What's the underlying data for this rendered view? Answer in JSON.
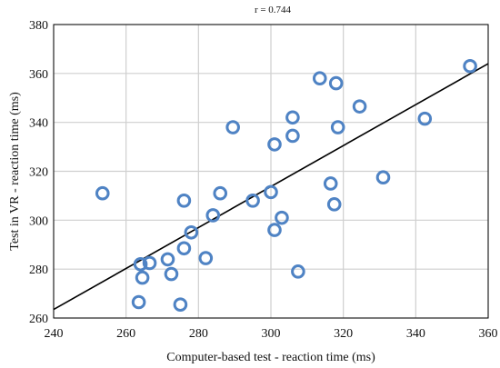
{
  "chart_data": {
    "type": "scatter",
    "title": "r = 0.744",
    "xlabel": "Computer-based test - reaction time (ms)",
    "ylabel": "Test in VR - reaction time (ms)",
    "xlim": [
      240,
      360
    ],
    "ylim": [
      260,
      380
    ],
    "xticks": [
      240,
      260,
      280,
      300,
      320,
      340,
      360
    ],
    "yticks": [
      260,
      280,
      300,
      320,
      340,
      360,
      380
    ],
    "grid": true,
    "marker_color": "#4f83c4",
    "line_color": "#000000",
    "points": [
      {
        "x": 253.5,
        "y": 311
      },
      {
        "x": 263.5,
        "y": 266.5
      },
      {
        "x": 264,
        "y": 282
      },
      {
        "x": 264.5,
        "y": 276.5
      },
      {
        "x": 266.5,
        "y": 282.5
      },
      {
        "x": 271.5,
        "y": 284
      },
      {
        "x": 272.5,
        "y": 278
      },
      {
        "x": 275,
        "y": 265.5
      },
      {
        "x": 276,
        "y": 308
      },
      {
        "x": 276,
        "y": 288.5
      },
      {
        "x": 278,
        "y": 295
      },
      {
        "x": 282,
        "y": 284.5
      },
      {
        "x": 284,
        "y": 302
      },
      {
        "x": 286,
        "y": 311
      },
      {
        "x": 289.5,
        "y": 338
      },
      {
        "x": 295,
        "y": 308
      },
      {
        "x": 300,
        "y": 311.5
      },
      {
        "x": 301,
        "y": 331
      },
      {
        "x": 301,
        "y": 296
      },
      {
        "x": 303,
        "y": 301
      },
      {
        "x": 306,
        "y": 342
      },
      {
        "x": 306,
        "y": 334.5
      },
      {
        "x": 307.5,
        "y": 279
      },
      {
        "x": 313.5,
        "y": 358
      },
      {
        "x": 316.5,
        "y": 315
      },
      {
        "x": 317.5,
        "y": 306.5
      },
      {
        "x": 318,
        "y": 356
      },
      {
        "x": 318.5,
        "y": 338
      },
      {
        "x": 324.5,
        "y": 346.5
      },
      {
        "x": 331,
        "y": 317.5
      },
      {
        "x": 342.5,
        "y": 341.5
      },
      {
        "x": 355,
        "y": 363
      }
    ],
    "fit_line": {
      "x": [
        240,
        360
      ],
      "y": [
        263.5,
        364
      ]
    }
  }
}
